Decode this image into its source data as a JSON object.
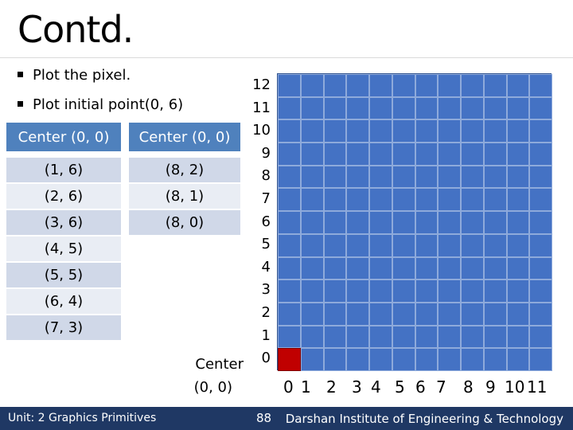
{
  "slide": {
    "title": "Contd.",
    "bullets": [
      "Plot the pixel.",
      "Plot initial point(0, 6)"
    ],
    "table_left": {
      "header": "Center (0, 0)",
      "rows": [
        "(1, 6)",
        "(2, 6)",
        "(3, 6)",
        "(4, 5)",
        "(5, 5)",
        "(6, 4)",
        "(7, 3)"
      ]
    },
    "table_right": {
      "header": "Center (0, 0)",
      "rows": [
        "(8, 2)",
        "(8, 1)",
        "(8, 0)"
      ]
    },
    "grid": {
      "y_labels": [
        "12",
        "11",
        "10",
        "9",
        "8",
        "7",
        "6",
        "5",
        "4",
        "3",
        "2",
        "1",
        "0"
      ],
      "x_labels": [
        "0",
        "1",
        "2",
        "3",
        "4",
        "5",
        "6",
        "7",
        "8",
        "9",
        "10",
        "11"
      ],
      "origin_label_line1": "Center",
      "origin_label_line2": "(0, 0)",
      "highlighted_cell": {
        "x": 0,
        "y": 0
      },
      "grid_color": "#4472c4",
      "highlight_color": "#c00000"
    },
    "footer": {
      "left": "Unit: 2 Graphics Primitives",
      "page": "88",
      "right": "Darshan Institute of Engineering & Technology"
    }
  }
}
